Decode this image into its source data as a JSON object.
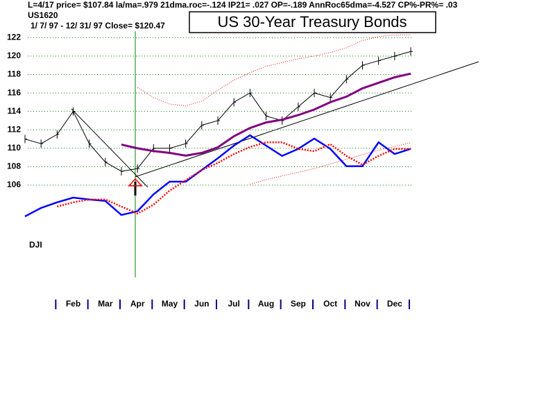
{
  "chart_data": {
    "type": "line",
    "title": "US 30-Year Treasury Bonds",
    "annotations": [
      "L=4/17  price= $107.84  la/ma=.979 21dma.roc=-.124 IP21= .027 OP=-.189 AnnRoc65dma=-4.527 CP%-PR%=  .03",
      "US1620",
      "1/ 7/ 97 -  12/ 31/ 97    Close= $120.47"
    ],
    "y2_label": "DJI",
    "x": [
      0,
      0.5,
      1,
      1.5,
      2,
      2.5,
      3,
      3.5,
      4,
      4.5,
      5,
      5.5,
      6,
      6.5,
      7,
      7.5,
      8,
      8.5,
      9,
      9.5,
      10,
      10.5,
      11,
      11.5,
      12
    ],
    "xlim": [
      0,
      12
    ],
    "xticks": [
      {
        "value": 1.5,
        "label": "Feb"
      },
      {
        "value": 2.5,
        "label": "Mar"
      },
      {
        "value": 3.5,
        "label": "Apr"
      },
      {
        "value": 4.5,
        "label": "May"
      },
      {
        "value": 5.5,
        "label": "Jun"
      },
      {
        "value": 6.5,
        "label": "Jul"
      },
      {
        "value": 7.5,
        "label": "Aug"
      },
      {
        "value": 8.5,
        "label": "Sep"
      },
      {
        "value": 9.5,
        "label": "Oct"
      },
      {
        "value": 10.5,
        "label": "Nov"
      },
      {
        "value": 11.5,
        "label": "Dec"
      }
    ],
    "ylim": [
      96,
      122.7
    ],
    "yticks": [
      106,
      108,
      110,
      112,
      114,
      116,
      118,
      120,
      122
    ],
    "y2lim": [
      5200,
      10450
    ],
    "grid": true,
    "series": [
      {
        "color": "#000000",
        "width": 1,
        "dotted": false,
        "ticks": true,
        "values": [
          111,
          110.5,
          111.5,
          114,
          110.5,
          108.5,
          107.5,
          107.8,
          110,
          110,
          110.5,
          112.5,
          113,
          115,
          116,
          113.5,
          113,
          114.5,
          116,
          115.5,
          117.5,
          119,
          119.5,
          120,
          120.5
        ]
      },
      {
        "color": "#800080",
        "width": 3,
        "dotted": false,
        "values": [
          null,
          null,
          null,
          null,
          null,
          null,
          110.4,
          110,
          109.7,
          109.5,
          109.2,
          109.5,
          110.1,
          111.3,
          112.2,
          112.8,
          113.1,
          113.6,
          114.2,
          115,
          115.6,
          116.5,
          117.1,
          117.7,
          118.1
        ]
      },
      {
        "color": "#ff0000",
        "width": 1,
        "dotted": true,
        "values": [
          null,
          null,
          null,
          null,
          null,
          null,
          null,
          116.6,
          115.5,
          114.8,
          114.6,
          115.1,
          116.3,
          117.4,
          118.2,
          118.9,
          119.3,
          119.7,
          120,
          120.4,
          120.9,
          121.7,
          122.1,
          122.3,
          122.3
        ]
      },
      {
        "color": "#ff0000",
        "width": 1,
        "dotted": true,
        "values": [
          null,
          null,
          null,
          null,
          null,
          null,
          null,
          null,
          null,
          null,
          null,
          null,
          null,
          null,
          106.1,
          106.6,
          107,
          107.4,
          107.8,
          108.3,
          108.8,
          109.3,
          109.8,
          110.2,
          110.6
        ]
      },
      {
        "color": "#0000ff",
        "width": 2.5,
        "dotted": false,
        "axis": "y2",
        "values": [
          6500,
          6680,
          6800,
          6900,
          6860,
          6830,
          6530,
          6610,
          6970,
          7240,
          7240,
          7490,
          7740,
          8010,
          8230,
          8010,
          7790,
          7940,
          8160,
          7940,
          7570,
          7570,
          8080,
          7830,
          7940
        ]
      },
      {
        "color": "#ff0000",
        "width": 2.5,
        "dotted": true,
        "axis": "y2",
        "values": [
          null,
          null,
          6710,
          6800,
          6860,
          6860,
          6710,
          6560,
          6750,
          7050,
          7270,
          7490,
          7640,
          7830,
          7980,
          8080,
          8080,
          7940,
          7890,
          8040,
          7790,
          7600,
          7790,
          7940,
          7940
        ]
      }
    ]
  }
}
